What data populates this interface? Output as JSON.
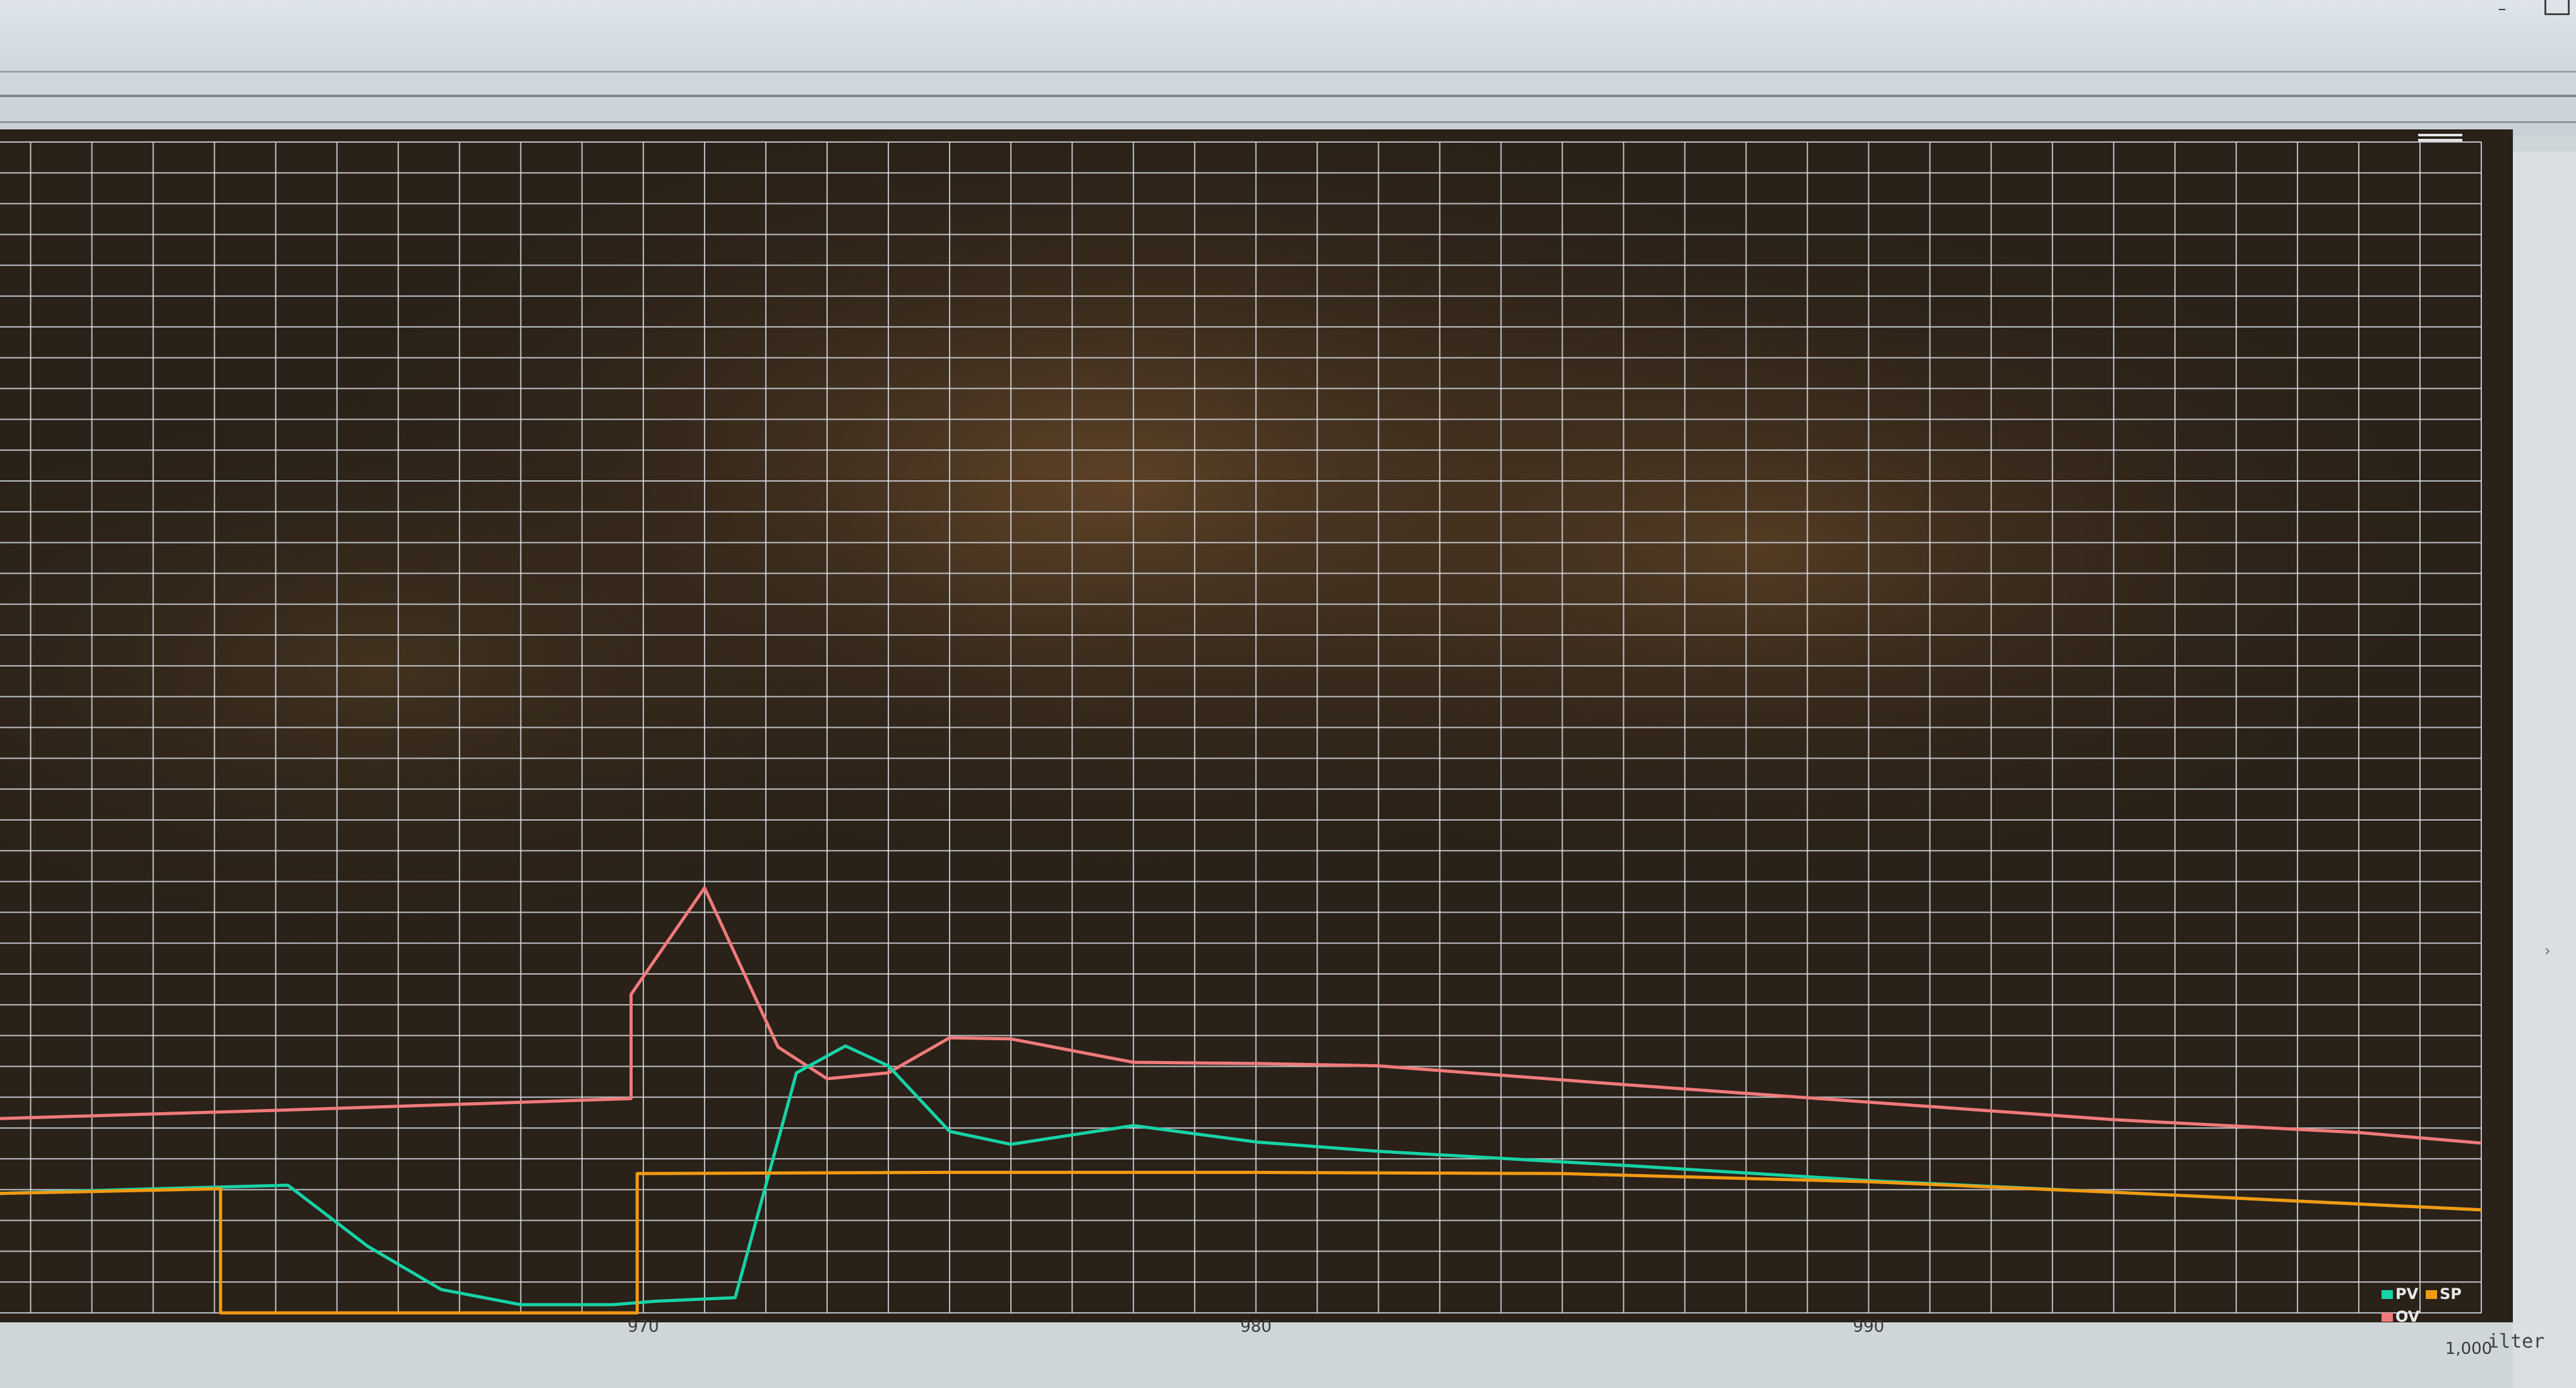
{
  "window": {
    "minimize_icon": "minimize-icon",
    "maximize_icon": "maximize-icon",
    "menu_icon": "hamburger-menu-icon"
  },
  "filter_label": "ilter",
  "side_glyph": "›",
  "colors": {
    "plot_background": "#2a2118",
    "grid": "#d8dde6",
    "pv": "#17d3a6",
    "sp": "#f29a13",
    "ov": "#f07a7a"
  },
  "chart_data": {
    "type": "line",
    "title": "",
    "xlabel": "",
    "ylabel": "",
    "x_ticks": [
      "970",
      "980",
      "990",
      "1,000"
    ],
    "xlim": [
      959.5,
      1000
    ],
    "ylim": [
      0,
      1
    ],
    "grid": true,
    "legend_position": "bottom-right",
    "legend": [
      {
        "name": "PV",
        "color": "#17d3a6"
      },
      {
        "name": "SP",
        "color": "#f29a13"
      },
      {
        "name": "OV",
        "color": "#f07a7a"
      }
    ],
    "series": [
      {
        "name": "OV",
        "color": "#f07a7a",
        "x": [
          959.5,
          964,
          969.8,
          969.8,
          971,
          972.2,
          973,
          974,
          975,
          976,
          978,
          980,
          982,
          986,
          990,
          994,
          998,
          1000
        ],
        "y": [
          0.166,
          0.173,
          0.183,
          0.272,
          0.363,
          0.227,
          0.2,
          0.205,
          0.235,
          0.234,
          0.214,
          0.213,
          0.211,
          0.195,
          0.18,
          0.165,
          0.154,
          0.145
        ]
      },
      {
        "name": "PV",
        "color": "#17d3a6",
        "x": [
          959.5,
          962,
          964.2,
          965.5,
          966.7,
          968,
          969.5,
          970.2,
          971.5,
          972.5,
          973.3,
          974,
          975,
          976,
          978,
          980,
          982,
          986,
          990,
          994,
          998,
          1000
        ],
        "y": [
          0.102,
          0.106,
          0.109,
          0.057,
          0.02,
          0.007,
          0.007,
          0.01,
          0.013,
          0.205,
          0.228,
          0.211,
          0.155,
          0.144,
          0.16,
          0.146,
          0.138,
          0.126,
          0.113,
          0.103,
          0.093,
          0.088
        ]
      },
      {
        "name": "SP",
        "color": "#f29a13",
        "x": [
          959.5,
          963.1,
          963.1,
          969.9,
          969.9,
          975,
          980,
          985,
          990,
          994,
          998,
          1000
        ],
        "y": [
          0.102,
          0.106,
          0.0,
          0.0,
          0.119,
          0.12,
          0.12,
          0.119,
          0.112,
          0.103,
          0.093,
          0.088
        ]
      }
    ]
  }
}
